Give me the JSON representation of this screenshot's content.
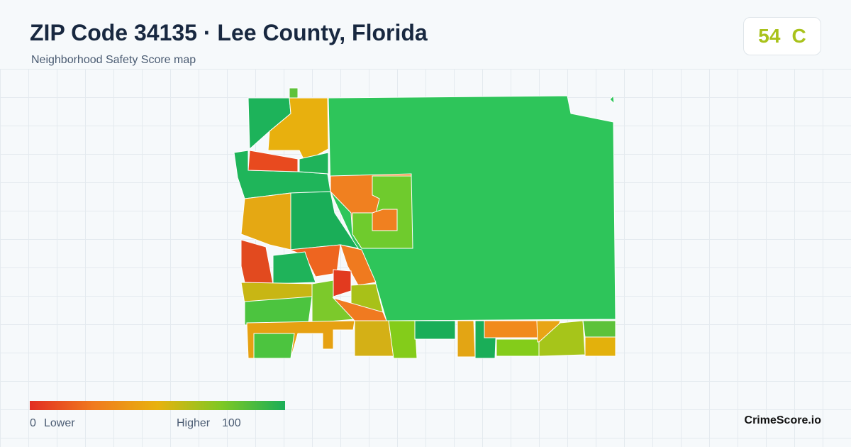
{
  "header": {
    "title": "ZIP Code 34135 · Lee County, Florida",
    "subtitle": "Neighborhood Safety Score map"
  },
  "score": {
    "value": 54,
    "grade": "C"
  },
  "legend": {
    "min": 0,
    "min_label": "Lower",
    "max_label": "Higher",
    "max": 100
  },
  "brand": "CrimeScore.io"
}
